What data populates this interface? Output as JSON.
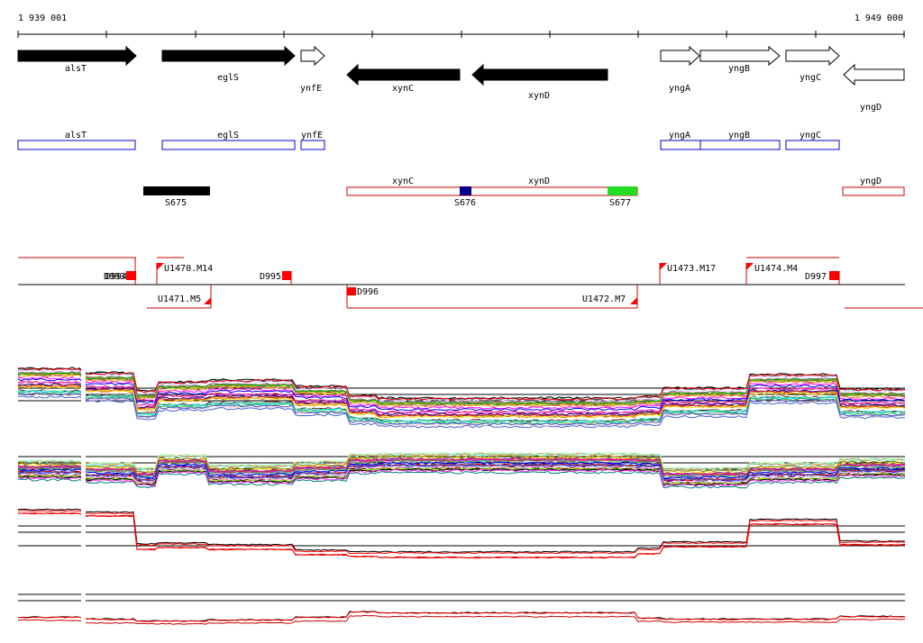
{
  "ruler": {
    "start_label": "1 939 001",
    "end_label": "1 949 000"
  },
  "colors": {
    "black": "#000000",
    "white": "#ffffff",
    "blue": "#0000cc",
    "red": "#cc0000",
    "bright_red": "#ff0000",
    "navy": "#000088",
    "green": "#22dd22"
  },
  "genes": [
    {
      "name": "alsT",
      "strand": "+",
      "fill": "black"
    },
    {
      "name": "eglS",
      "strand": "+",
      "fill": "black"
    },
    {
      "name": "ynfE",
      "strand": "+",
      "fill": "white"
    },
    {
      "name": "xynC",
      "strand": "-",
      "fill": "black"
    },
    {
      "name": "xynD",
      "strand": "-",
      "fill": "black"
    },
    {
      "name": "yngA",
      "strand": "+",
      "fill": "white"
    },
    {
      "name": "yngB",
      "strand": "+",
      "fill": "white"
    },
    {
      "name": "yngC",
      "strand": "+",
      "fill": "white"
    },
    {
      "name": "yngD",
      "strand": "-",
      "fill": "white"
    }
  ],
  "gene_boxes_blue": [
    "alsT",
    "eglS",
    "ynfE",
    "yngA",
    "yngB",
    "yngC"
  ],
  "gene_boxes_red": [
    "xynC",
    "xynD",
    "yngD"
  ],
  "s_markers": [
    {
      "name": "S675",
      "color": "black"
    },
    {
      "name": "S676",
      "color": "navy"
    },
    {
      "name": "S677",
      "color": "green"
    }
  ],
  "transcripts_top": [
    "U1470.M14",
    "D995",
    "U1473.M17",
    "U1474.M4",
    "D997"
  ],
  "overlapped_labels_left": [
    "D993",
    "D994"
  ],
  "transcripts_bottom": [
    "U1471.M5",
    "D996",
    "U1472.M7"
  ],
  "expression_tracks": [
    {
      "name": "track-multicolor-1",
      "style": "multicolor"
    },
    {
      "name": "track-multicolor-2",
      "style": "multicolor"
    },
    {
      "name": "track-red-black-1",
      "style": "red-black"
    },
    {
      "name": "track-red-black-2",
      "style": "red-black"
    }
  ]
}
